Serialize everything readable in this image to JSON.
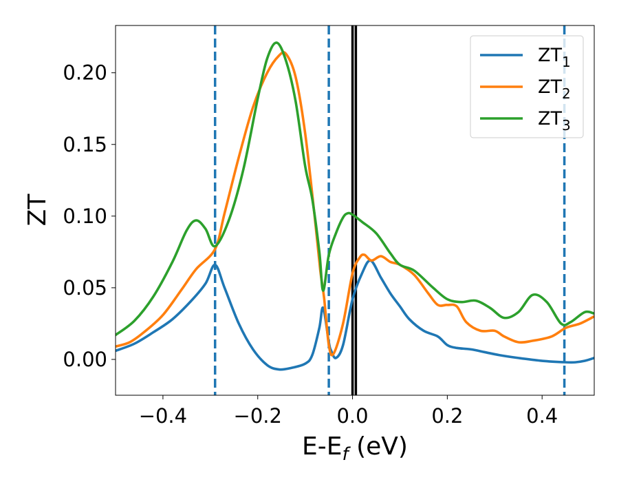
{
  "chart_data": {
    "type": "line",
    "xlabel": "E-E",
    "xlabel_sub": "f",
    "xlabel_unit": " (eV)",
    "ylabel": "ZT",
    "xlim": [
      -0.5,
      0.51
    ],
    "ylim": [
      -0.025,
      0.233
    ],
    "x_ticks": [
      {
        "value": -0.4,
        "label": "−0.4"
      },
      {
        "value": -0.2,
        "label": "−0.2"
      },
      {
        "value": 0.0,
        "label": "0.0"
      },
      {
        "value": 0.2,
        "label": "0.2"
      },
      {
        "value": 0.4,
        "label": "0.4"
      }
    ],
    "y_ticks": [
      {
        "value": 0.0,
        "label": "0.00"
      },
      {
        "value": 0.05,
        "label": "0.05"
      },
      {
        "value": 0.1,
        "label": "0.10"
      },
      {
        "value": 0.15,
        "label": "0.15"
      },
      {
        "value": 0.2,
        "label": "0.20"
      }
    ],
    "grid": false,
    "legend_position": "top-right",
    "vertical_lines": [
      {
        "x": -0.29,
        "style": "dashed",
        "color": "#1f77b4"
      },
      {
        "x": -0.05,
        "style": "dashed",
        "color": "#1f77b4"
      },
      {
        "x": 0.447,
        "style": "dashed",
        "color": "#1f77b4"
      },
      {
        "x": 0.0,
        "style": "solid",
        "color": "#000000"
      },
      {
        "x": 0.007,
        "style": "solid",
        "color": "#000000"
      }
    ],
    "series": [
      {
        "name": "ZT",
        "name_sub": "1",
        "color": "#1f77b4",
        "x": [
          -0.5,
          -0.46,
          -0.42,
          -0.38,
          -0.34,
          -0.31,
          -0.29,
          -0.27,
          -0.24,
          -0.21,
          -0.18,
          -0.155,
          -0.13,
          -0.1,
          -0.085,
          -0.07,
          -0.062,
          -0.05,
          -0.045,
          -0.035,
          -0.02,
          0.0,
          0.02,
          0.038,
          0.06,
          0.08,
          0.1,
          0.12,
          0.15,
          0.18,
          0.2,
          0.22,
          0.25,
          0.28,
          0.31,
          0.35,
          0.4,
          0.45,
          0.47,
          0.49,
          0.51
        ],
        "y": [
          0.006,
          0.011,
          0.019,
          0.028,
          0.041,
          0.053,
          0.066,
          0.05,
          0.025,
          0.007,
          -0.004,
          -0.007,
          -0.006,
          -0.003,
          0.003,
          0.022,
          0.036,
          0.012,
          0.006,
          0.001,
          0.01,
          0.042,
          0.06,
          0.069,
          0.057,
          0.046,
          0.037,
          0.028,
          0.02,
          0.016,
          0.01,
          0.008,
          0.007,
          0.005,
          0.003,
          0.001,
          -0.001,
          -0.002,
          -0.002,
          -0.001,
          0.001
        ]
      },
      {
        "name": "ZT",
        "name_sub": "2",
        "color": "#ff7f0e",
        "x": [
          -0.5,
          -0.47,
          -0.44,
          -0.4,
          -0.36,
          -0.33,
          -0.29,
          -0.27,
          -0.24,
          -0.21,
          -0.18,
          -0.155,
          -0.14,
          -0.12,
          -0.1,
          -0.08,
          -0.068,
          -0.06,
          -0.05,
          -0.04,
          -0.02,
          0.0,
          0.015,
          0.025,
          0.04,
          0.06,
          0.08,
          0.1,
          0.13,
          0.16,
          0.18,
          0.2,
          0.22,
          0.24,
          0.27,
          0.3,
          0.32,
          0.35,
          0.38,
          0.42,
          0.45,
          0.48,
          0.51
        ],
        "y": [
          0.009,
          0.012,
          0.019,
          0.031,
          0.049,
          0.063,
          0.077,
          0.102,
          0.141,
          0.176,
          0.2,
          0.212,
          0.213,
          0.197,
          0.158,
          0.1,
          0.062,
          0.043,
          0.01,
          0.004,
          0.025,
          0.06,
          0.071,
          0.073,
          0.069,
          0.072,
          0.068,
          0.066,
          0.059,
          0.046,
          0.038,
          0.038,
          0.037,
          0.026,
          0.02,
          0.02,
          0.016,
          0.012,
          0.013,
          0.016,
          0.022,
          0.025,
          0.03
        ]
      },
      {
        "name": "ZT",
        "name_sub": "3",
        "color": "#2ca02c",
        "x": [
          -0.5,
          -0.46,
          -0.42,
          -0.38,
          -0.35,
          -0.33,
          -0.31,
          -0.29,
          -0.26,
          -0.23,
          -0.2,
          -0.18,
          -0.16,
          -0.14,
          -0.12,
          -0.1,
          -0.085,
          -0.07,
          -0.062,
          -0.05,
          -0.035,
          -0.02,
          -0.01,
          0.0,
          0.02,
          0.05,
          0.08,
          0.1,
          0.13,
          0.17,
          0.2,
          0.23,
          0.26,
          0.29,
          0.32,
          0.35,
          0.38,
          0.41,
          0.44,
          0.46,
          0.49,
          0.51
        ],
        "y": [
          0.017,
          0.027,
          0.044,
          0.068,
          0.09,
          0.097,
          0.091,
          0.079,
          0.098,
          0.133,
          0.182,
          0.21,
          0.221,
          0.208,
          0.18,
          0.135,
          0.112,
          0.075,
          0.048,
          0.073,
          0.088,
          0.099,
          0.102,
          0.101,
          0.096,
          0.088,
          0.074,
          0.066,
          0.062,
          0.05,
          0.042,
          0.04,
          0.041,
          0.036,
          0.029,
          0.033,
          0.045,
          0.04,
          0.025,
          0.026,
          0.033,
          0.032
        ]
      }
    ]
  }
}
